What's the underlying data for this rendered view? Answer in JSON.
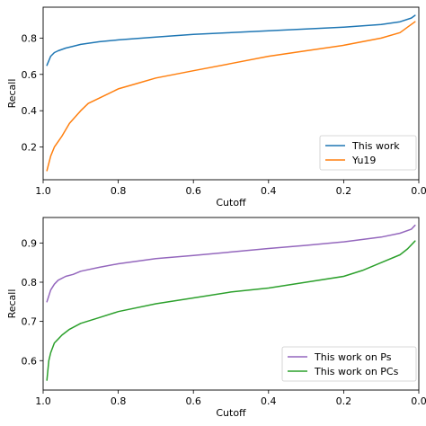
{
  "chart_data": [
    {
      "type": "line",
      "xlabel": "Cutoff",
      "ylabel": "Recall",
      "xlim": [
        1.0,
        0.0
      ],
      "ylim": [
        0.02,
        0.97
      ],
      "xticks": [
        1.0,
        0.8,
        0.6,
        0.4,
        0.2,
        0.0
      ],
      "xtick_labels": [
        "1.0",
        "0.8",
        "0.6",
        "0.4",
        "0.2",
        "0.0"
      ],
      "yticks": [
        0.2,
        0.4,
        0.6,
        0.8
      ],
      "ytick_labels": [
        "0.2",
        "0.4",
        "0.6",
        "0.8"
      ],
      "grid": false,
      "legend_position": "bottom-right",
      "series": [
        {
          "name": "This work",
          "color": "#1f77b4",
          "x": [
            0.99,
            0.98,
            0.97,
            0.96,
            0.94,
            0.92,
            0.9,
            0.85,
            0.8,
            0.7,
            0.6,
            0.5,
            0.4,
            0.3,
            0.2,
            0.1,
            0.05,
            0.02,
            0.01
          ],
          "y": [
            0.65,
            0.7,
            0.72,
            0.73,
            0.745,
            0.755,
            0.765,
            0.78,
            0.79,
            0.805,
            0.82,
            0.83,
            0.84,
            0.85,
            0.86,
            0.875,
            0.89,
            0.91,
            0.925
          ]
        },
        {
          "name": "Yu19",
          "color": "#ff7f0e",
          "x": [
            0.99,
            0.98,
            0.97,
            0.96,
            0.95,
            0.93,
            0.9,
            0.88,
            0.85,
            0.8,
            0.75,
            0.7,
            0.6,
            0.5,
            0.4,
            0.3,
            0.2,
            0.15,
            0.1,
            0.05,
            0.03,
            0.01
          ],
          "y": [
            0.07,
            0.15,
            0.2,
            0.23,
            0.26,
            0.33,
            0.4,
            0.44,
            0.47,
            0.52,
            0.55,
            0.58,
            0.62,
            0.66,
            0.7,
            0.73,
            0.76,
            0.78,
            0.8,
            0.83,
            0.86,
            0.89
          ]
        }
      ]
    },
    {
      "type": "line",
      "xlabel": "Cutoff",
      "ylabel": "Recall",
      "xlim": [
        1.0,
        0.0
      ],
      "ylim": [
        0.525,
        0.965
      ],
      "xticks": [
        1.0,
        0.8,
        0.6,
        0.4,
        0.2,
        0.0
      ],
      "xtick_labels": [
        "1.0",
        "0.8",
        "0.6",
        "0.4",
        "0.2",
        "0.0"
      ],
      "yticks": [
        0.6,
        0.7,
        0.8,
        0.9
      ],
      "ytick_labels": [
        "0.6",
        "0.7",
        "0.8",
        "0.9"
      ],
      "grid": false,
      "legend_position": "bottom-right",
      "series": [
        {
          "name": "This work on Ps",
          "color": "#9467bd",
          "x": [
            0.99,
            0.98,
            0.97,
            0.96,
            0.94,
            0.92,
            0.9,
            0.85,
            0.8,
            0.7,
            0.6,
            0.5,
            0.4,
            0.3,
            0.2,
            0.1,
            0.05,
            0.02,
            0.01
          ],
          "y": [
            0.75,
            0.78,
            0.795,
            0.805,
            0.815,
            0.82,
            0.828,
            0.838,
            0.847,
            0.86,
            0.868,
            0.877,
            0.886,
            0.894,
            0.903,
            0.915,
            0.925,
            0.935,
            0.945
          ]
        },
        {
          "name": "This work on PCs",
          "color": "#2ca02c",
          "x": [
            0.99,
            0.985,
            0.98,
            0.97,
            0.96,
            0.95,
            0.93,
            0.9,
            0.85,
            0.8,
            0.7,
            0.6,
            0.5,
            0.4,
            0.3,
            0.2,
            0.15,
            0.1,
            0.05,
            0.03,
            0.01
          ],
          "y": [
            0.55,
            0.6,
            0.62,
            0.645,
            0.655,
            0.665,
            0.68,
            0.695,
            0.71,
            0.725,
            0.745,
            0.76,
            0.775,
            0.785,
            0.8,
            0.815,
            0.83,
            0.85,
            0.87,
            0.885,
            0.905
          ]
        }
      ]
    }
  ]
}
